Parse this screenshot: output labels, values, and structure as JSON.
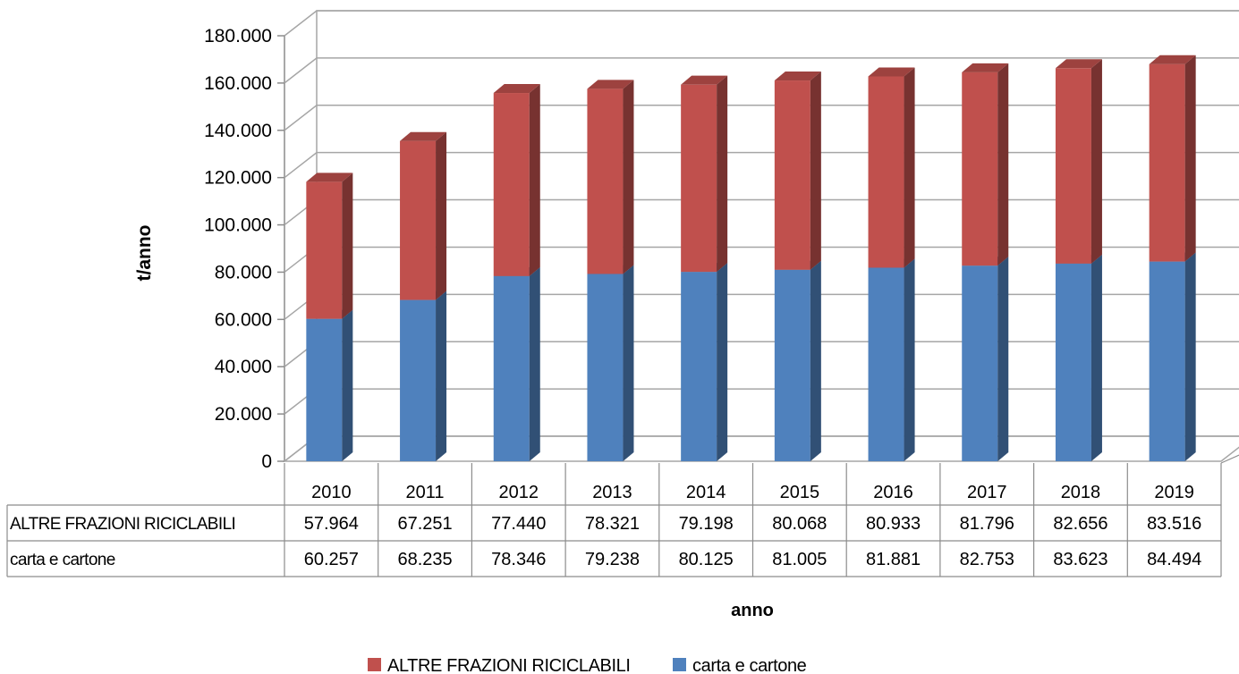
{
  "chart_data": {
    "type": "bar",
    "stacked": true,
    "three_d": true,
    "categories": [
      "2010",
      "2011",
      "2012",
      "2013",
      "2014",
      "2015",
      "2016",
      "2017",
      "2018",
      "2019"
    ],
    "series": [
      {
        "name": "carta e cartone",
        "color": "#4f81bd",
        "values": [
          60257,
          68235,
          78346,
          79238,
          80125,
          81005,
          81881,
          82753,
          83623,
          84494
        ],
        "display": [
          "60.257",
          "68.235",
          "78.346",
          "79.238",
          "80.125",
          "81.005",
          "81.881",
          "82.753",
          "83.623",
          "84.494"
        ]
      },
      {
        "name": "ALTRE FRAZIONI RICICLABILI",
        "color": "#c0504d",
        "values": [
          57964,
          67251,
          77440,
          78321,
          79198,
          80068,
          80933,
          81796,
          82656,
          83516
        ],
        "display": [
          "57.964",
          "67.251",
          "77.440",
          "78.321",
          "79.198",
          "80.068",
          "80.933",
          "81.796",
          "82.656",
          "83.516"
        ]
      }
    ],
    "table_order": [
      1,
      0
    ],
    "legend_order": [
      1,
      0
    ],
    "xlabel": "anno",
    "ylabel": "t/anno",
    "ylim": [
      0,
      180000
    ],
    "yticks": [
      0,
      20000,
      40000,
      60000,
      80000,
      100000,
      120000,
      140000,
      160000,
      180000
    ],
    "ytick_labels": [
      "0",
      "20.000",
      "40.000",
      "60.000",
      "80.000",
      "100.000",
      "120.000",
      "140.000",
      "160.000",
      "180.000"
    ],
    "grid": true,
    "legend": "bottom",
    "data_table": true
  }
}
